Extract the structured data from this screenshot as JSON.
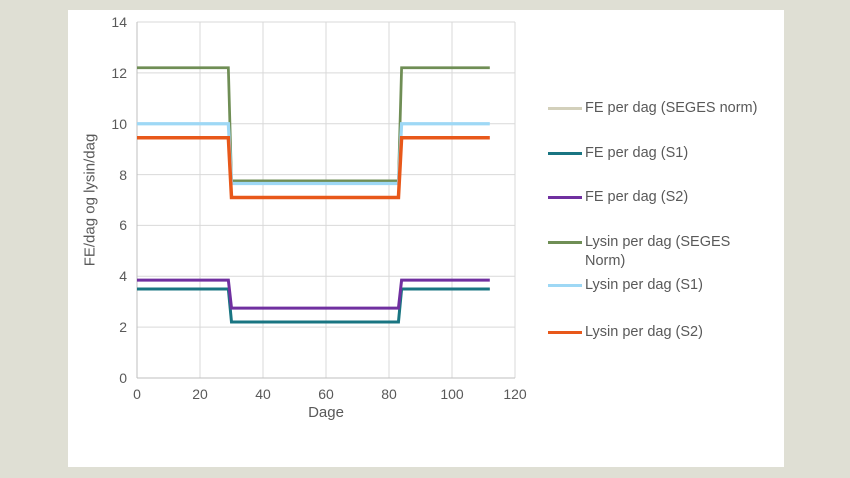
{
  "chart_data": {
    "type": "line",
    "title": "",
    "xlabel": "Dage",
    "ylabel": "FE/dag og lysin/dag",
    "xlim": [
      0,
      120
    ],
    "ylim": [
      0,
      14
    ],
    "x_ticks": [
      0,
      20,
      40,
      60,
      80,
      100,
      120
    ],
    "y_ticks": [
      0,
      2,
      4,
      6,
      8,
      10,
      12,
      14
    ],
    "grid": true,
    "legend_position": "right",
    "x": [
      0,
      29,
      30,
      83,
      84,
      112
    ],
    "series": [
      {
        "name": "FE per dag (SEGES norm)",
        "legend_label": "FE per dag (SEGES norm)",
        "color": "#d3d0bb",
        "stroke_width": 2.5,
        "values": [
          3.5,
          3.5,
          2.2,
          2.2,
          3.5,
          3.5
        ]
      },
      {
        "name": "FE per dag (S1)",
        "legend_label": "FE per dag (S1)",
        "color": "#197582",
        "stroke_width": 3,
        "values": [
          3.5,
          3.5,
          2.2,
          2.2,
          3.5,
          3.5
        ]
      },
      {
        "name": "FE per dag (S2)",
        "legend_label": "FE per dag (S2)",
        "color": "#7030a0",
        "stroke_width": 3,
        "values": [
          3.85,
          3.85,
          2.75,
          2.75,
          3.85,
          3.85
        ]
      },
      {
        "name": "Lysin per dag (SEGES Norm)",
        "legend_label": "Lysin per dag (SEGES\nNorm)",
        "color": "#6f8e55",
        "stroke_width": 2.75,
        "values": [
          12.2,
          12.2,
          7.75,
          7.75,
          12.2,
          12.2
        ]
      },
      {
        "name": "Lysin per dag (S1)",
        "legend_label": "Lysin per dag (S1)",
        "color": "#9ed8f5",
        "stroke_width": 3.25,
        "values": [
          10,
          10,
          7.65,
          7.65,
          10,
          10
        ]
      },
      {
        "name": "Lysin per dag (S2)",
        "legend_label": "Lysin per dag (S2)",
        "color": "#e8581a",
        "stroke_width": 3.5,
        "values": [
          9.45,
          9.45,
          7.1,
          7.1,
          9.45,
          9.45
        ]
      }
    ],
    "grid_color": "#d9d9d9",
    "axis_color": "#bfbfbf",
    "text_color": "#595959"
  }
}
